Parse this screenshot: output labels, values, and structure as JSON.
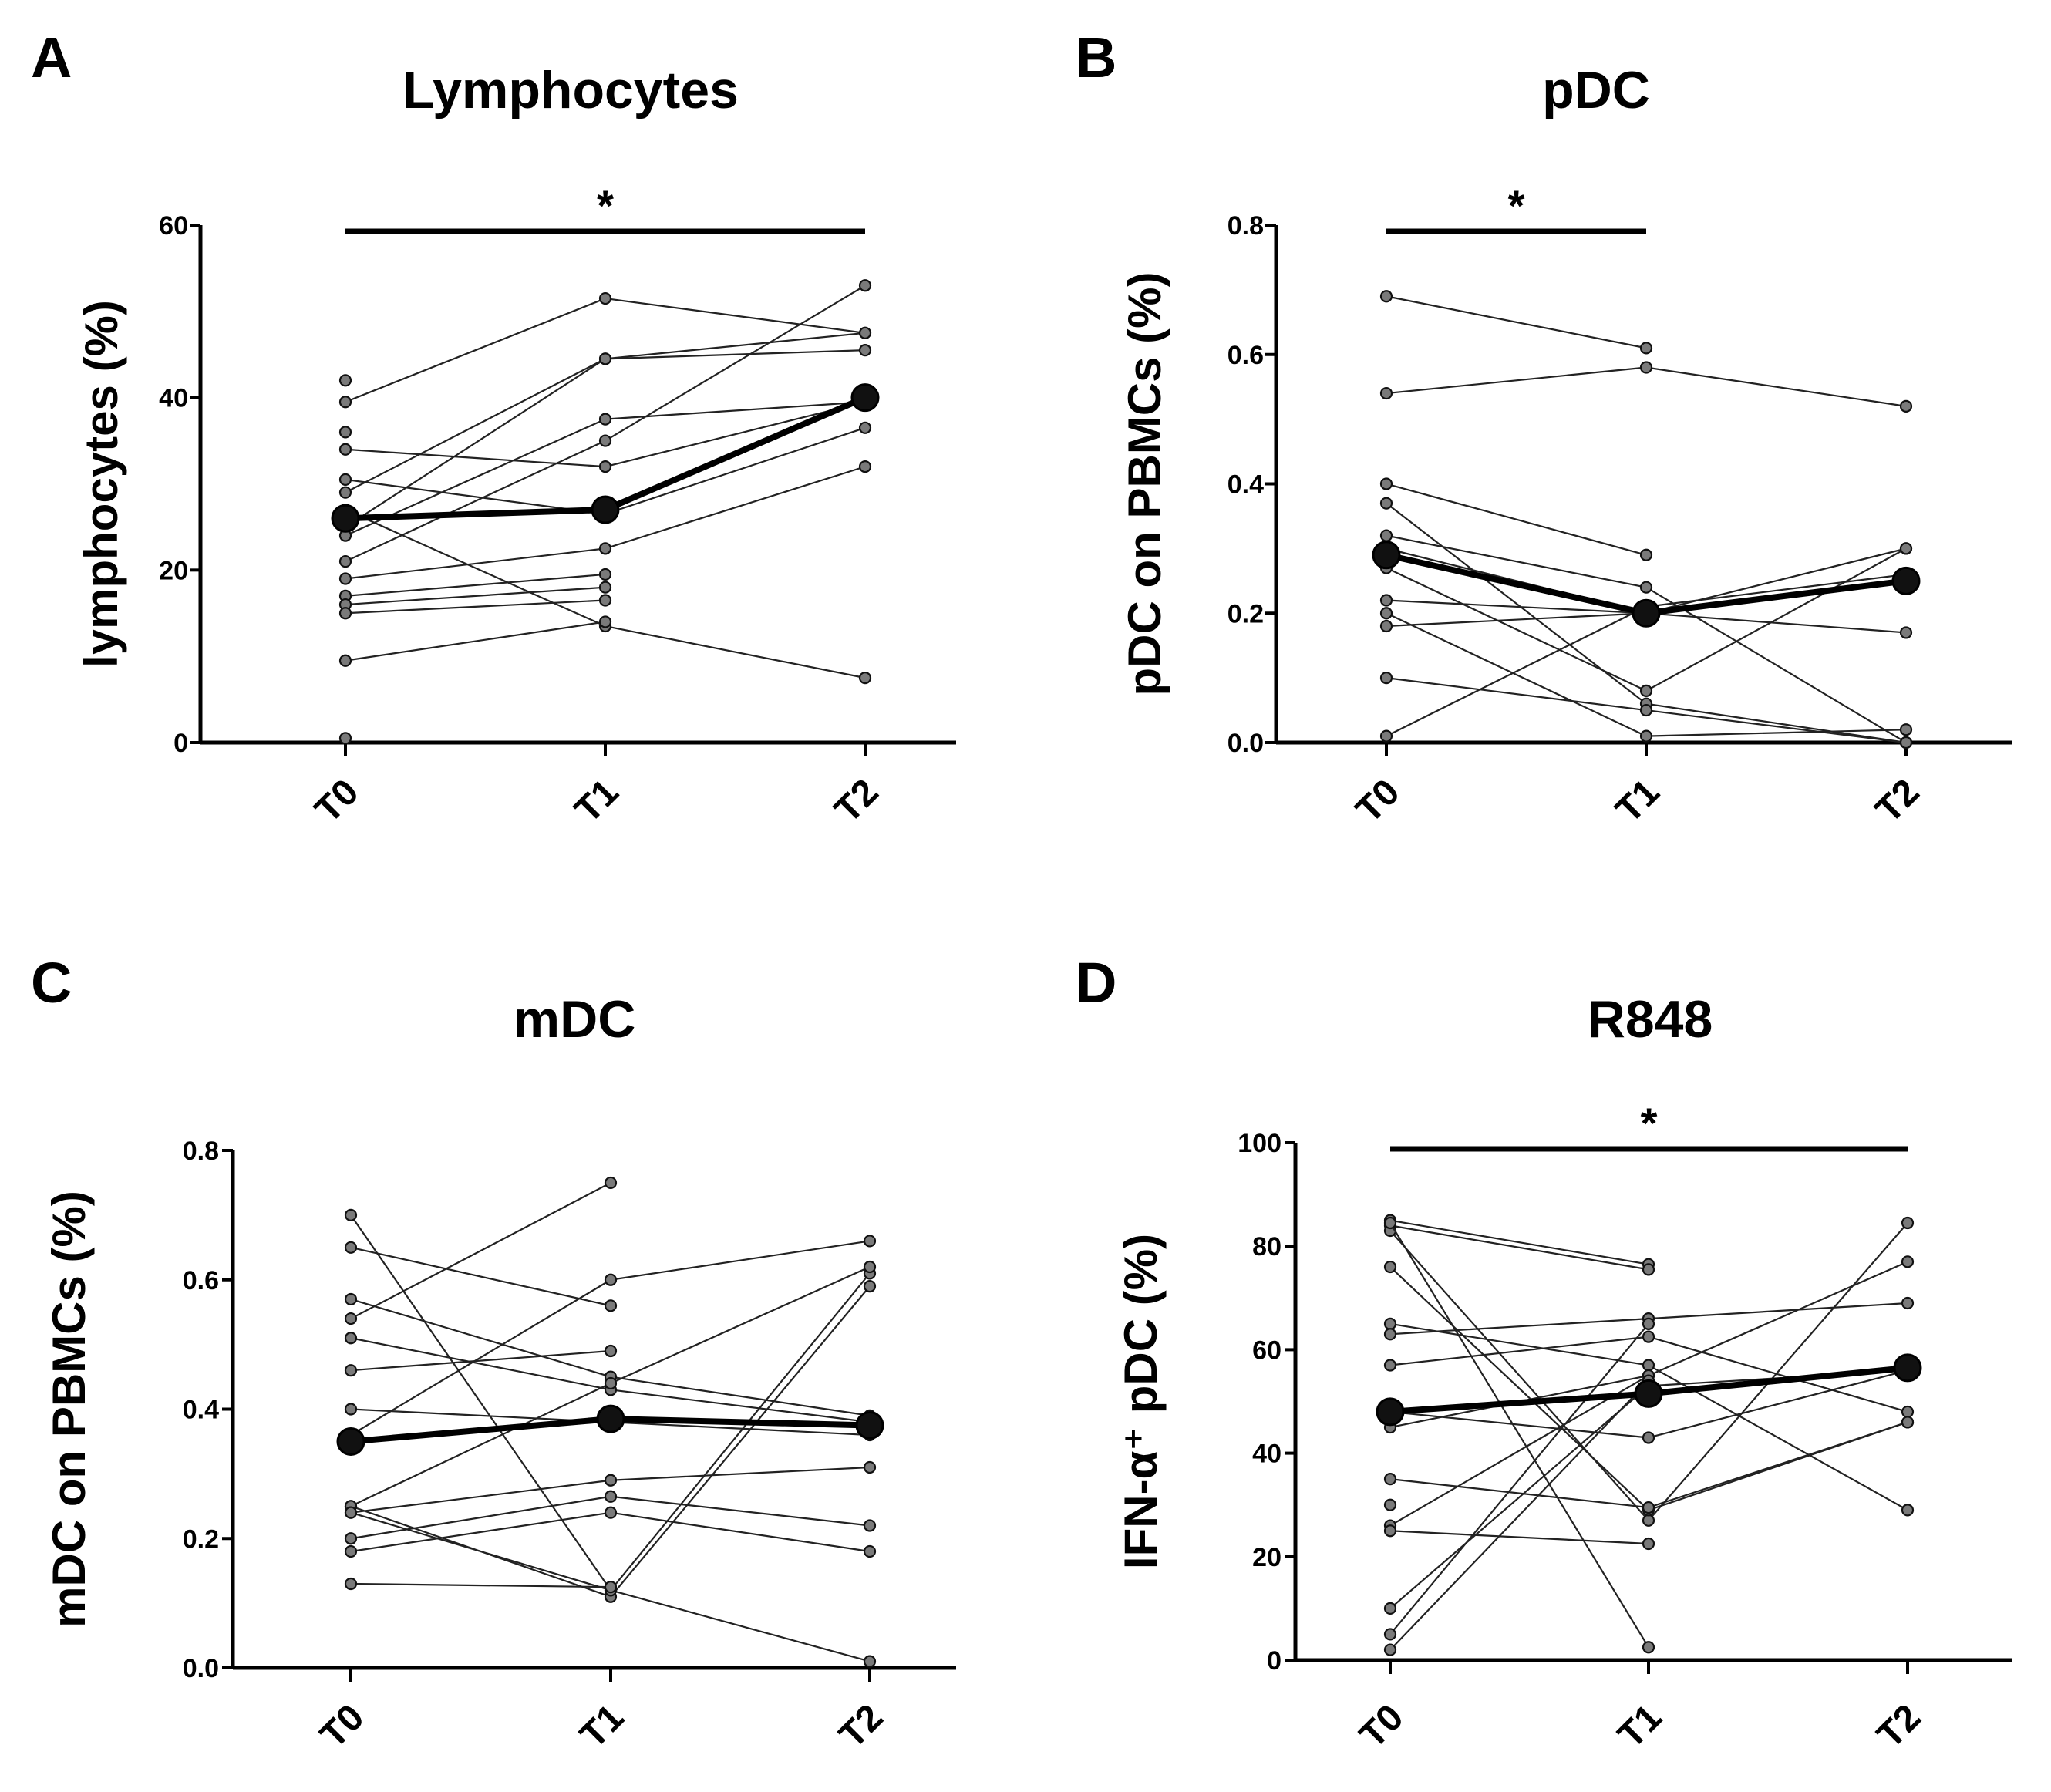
{
  "chart_data": [
    {
      "panel": "A",
      "type": "line",
      "title": "Lymphocytes",
      "ylabel": "lymphocytes (%)",
      "categories": [
        "T0",
        "T1",
        "T2"
      ],
      "ylim": [
        0,
        60
      ],
      "yticks": [
        "0",
        "20",
        "40",
        "60"
      ],
      "significance": {
        "from": "T0",
        "to": "T2",
        "label": "*"
      },
      "mean": [
        26,
        27,
        40
      ],
      "series": [
        {
          "values": [
            42,
            null,
            null
          ]
        },
        {
          "values": [
            39.5,
            51.5,
            47.5
          ]
        },
        {
          "values": [
            36,
            null,
            null
          ]
        },
        {
          "values": [
            34,
            32,
            39.5
          ]
        },
        {
          "values": [
            30.5,
            26.5,
            36.5
          ]
        },
        {
          "values": [
            29,
            44.5,
            47.5
          ]
        },
        {
          "values": [
            25,
            44.5,
            45.5
          ]
        },
        {
          "values": [
            24,
            37.5,
            39.5
          ]
        },
        {
          "values": [
            27,
            13.5,
            7.5
          ]
        },
        {
          "values": [
            21,
            35,
            53
          ]
        },
        {
          "values": [
            19,
            22.5,
            32
          ]
        },
        {
          "values": [
            17,
            19.5,
            null
          ]
        },
        {
          "values": [
            16,
            18,
            null
          ]
        },
        {
          "values": [
            15,
            16.5,
            null
          ]
        },
        {
          "values": [
            9.5,
            14,
            null
          ]
        },
        {
          "values": [
            0.5,
            null,
            null
          ]
        }
      ]
    },
    {
      "panel": "B",
      "type": "line",
      "title": "pDC",
      "ylabel": "pDC on PBMCs (%)",
      "categories": [
        "T0",
        "T1",
        "T2"
      ],
      "ylim": [
        0,
        0.8
      ],
      "yticks": [
        "0.0",
        "0.2",
        "0.4",
        "0.6",
        "0.8"
      ],
      "significance": {
        "from": "T0",
        "to": "T1",
        "label": "*"
      },
      "mean": [
        0.29,
        0.2,
        0.25
      ],
      "series": [
        {
          "values": [
            0.69,
            0.61,
            null
          ]
        },
        {
          "values": [
            0.54,
            0.58,
            0.52
          ]
        },
        {
          "values": [
            0.4,
            0.29,
            null
          ]
        },
        {
          "values": [
            0.37,
            0.06,
            0.0
          ]
        },
        {
          "values": [
            0.32,
            0.24,
            0.0
          ]
        },
        {
          "values": [
            0.3,
            0.2,
            0.3
          ]
        },
        {
          "values": [
            0.27,
            0.08,
            0.3
          ]
        },
        {
          "values": [
            0.22,
            0.2,
            0.17
          ]
        },
        {
          "values": [
            0.2,
            0.01,
            0.02
          ]
        },
        {
          "values": [
            0.18,
            0.2,
            0.25
          ]
        },
        {
          "values": [
            0.1,
            0.05,
            0.0
          ]
        },
        {
          "values": [
            0.01,
            0.21,
            0.26
          ]
        }
      ]
    },
    {
      "panel": "C",
      "type": "line",
      "title": "mDC",
      "ylabel": "mDC on PBMCs (%)",
      "categories": [
        "T0",
        "T1",
        "T2"
      ],
      "ylim": [
        0,
        0.8
      ],
      "yticks": [
        "0.0",
        "0.2",
        "0.4",
        "0.6",
        "0.8"
      ],
      "significance": null,
      "mean": [
        0.35,
        0.385,
        0.375
      ],
      "series": [
        {
          "values": [
            0.7,
            0.12,
            0.61
          ]
        },
        {
          "values": [
            0.65,
            0.56,
            null
          ]
        },
        {
          "values": [
            0.57,
            0.45,
            0.39
          ]
        },
        {
          "values": [
            0.54,
            0.75,
            null
          ]
        },
        {
          "values": [
            0.51,
            0.43,
            0.38
          ]
        },
        {
          "values": [
            0.46,
            0.49,
            null
          ]
        },
        {
          "values": [
            0.4,
            0.38,
            0.36
          ]
        },
        {
          "values": [
            0.36,
            0.6,
            0.66
          ]
        },
        {
          "values": [
            0.25,
            0.11,
            0.59
          ]
        },
        {
          "values": [
            0.25,
            0.44,
            0.62
          ]
        },
        {
          "values": [
            0.24,
            0.29,
            0.31
          ]
        },
        {
          "values": [
            0.2,
            0.265,
            0.22
          ]
        },
        {
          "values": [
            0.18,
            0.24,
            0.18
          ]
        },
        {
          "values": [
            0.24,
            0.12,
            0.01
          ]
        },
        {
          "values": [
            0.13,
            0.125,
            null
          ]
        }
      ]
    },
    {
      "panel": "D",
      "type": "line",
      "title": "R848",
      "ylabel": "IFN-α⁺ pDC (%)",
      "categories": [
        "T0",
        "T1",
        "T2"
      ],
      "ylim": [
        0,
        100
      ],
      "yticks": [
        "0",
        "20",
        "40",
        "60",
        "80",
        "100"
      ],
      "significance": {
        "from": "T0",
        "to": "T2",
        "label": "*"
      },
      "mean": [
        48,
        51.5,
        56.5
      ],
      "series": [
        {
          "values": [
            85,
            76.5,
            null
          ]
        },
        {
          "values": [
            84,
            75.5,
            null
          ]
        },
        {
          "values": [
            83,
            27,
            84.5
          ]
        },
        {
          "values": [
            76,
            29,
            46
          ]
        },
        {
          "values": [
            65,
            57,
            29
          ]
        },
        {
          "values": [
            63,
            66,
            69
          ]
        },
        {
          "values": [
            57,
            62.5,
            48
          ]
        },
        {
          "values": [
            48,
            43,
            56
          ]
        },
        {
          "values": [
            45,
            55,
            77
          ]
        },
        {
          "values": [
            35,
            29.5,
            46
          ]
        },
        {
          "values": [
            30,
            null,
            null
          ]
        },
        {
          "values": [
            26,
            55,
            null
          ]
        },
        {
          "values": [
            25,
            22.5,
            null
          ]
        },
        {
          "values": [
            10,
            53,
            56
          ]
        },
        {
          "values": [
            5,
            65,
            null
          ]
        },
        {
          "values": [
            2,
            54,
            null
          ]
        },
        {
          "values": [
            84.5,
            2.5,
            null
          ]
        }
      ]
    }
  ]
}
